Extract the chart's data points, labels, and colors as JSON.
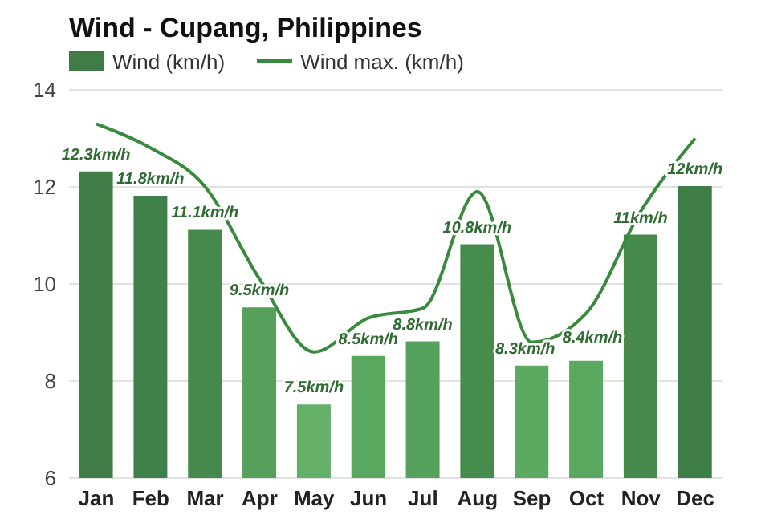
{
  "chart_data": {
    "type": "bar",
    "title": "Wind - Cupang, Philippines",
    "categories": [
      "Jan",
      "Feb",
      "Mar",
      "Apr",
      "May",
      "Jun",
      "Jul",
      "Aug",
      "Sep",
      "Oct",
      "Nov",
      "Dec"
    ],
    "series": [
      {
        "name": "Wind (km/h)",
        "color": "#3f7c46",
        "colors": [
          "#3f7c46",
          "#40804a",
          "#458a4c",
          "#56a05c",
          "#64b068",
          "#5aa860",
          "#56a25c",
          "#468c4d",
          "#5caa62",
          "#5aa860",
          "#468a4d",
          "#3f7d46"
        ],
        "values": [
          12.3,
          11.8,
          11.1,
          9.5,
          7.5,
          8.5,
          8.8,
          10.8,
          8.3,
          8.4,
          11,
          12
        ],
        "value_labels": [
          "12.3km/h",
          "11.8km/h",
          "11.1km/h",
          "9.5km/h",
          "7.5km/h",
          "8.5km/h",
          "8.8km/h",
          "10.8km/h",
          "8.3km/h",
          "8.4km/h",
          "11km/h",
          "12km/h"
        ]
      },
      {
        "name": "Wind max. (km/h)",
        "type": "line",
        "color": "#3a8a3e",
        "values": [
          13.3,
          12.8,
          12.0,
          10.1,
          8.6,
          9.3,
          9.5,
          11.9,
          8.8,
          9.4,
          11.5,
          13.0
        ]
      }
    ],
    "ylim": [
      6,
      14
    ],
    "yticks": [
      6,
      8,
      10,
      12,
      14
    ],
    "grid": "y",
    "legend": "top left",
    "marker": "none",
    "line_style": "solid"
  }
}
